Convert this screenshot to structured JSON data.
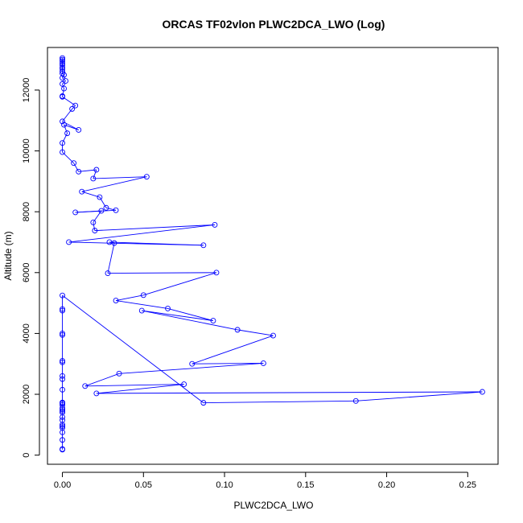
{
  "chart_data": {
    "type": "line",
    "title": "ORCAS TF02vlon PLWC2DCA_LWO (Log)",
    "xlabel": "PLWC2DCA_LWO",
    "ylabel": "Altitude (m)",
    "xlim": [
      -0.0092,
      0.2687
    ],
    "ylim": [
      -300,
      13400
    ],
    "xticks": [
      0.0,
      0.05,
      0.1,
      0.15,
      0.2,
      0.25
    ],
    "xtick_labels": [
      "0.00",
      "0.05",
      "0.10",
      "0.15",
      "0.20",
      "0.25"
    ],
    "yticks": [
      0,
      2000,
      4000,
      6000,
      8000,
      10000,
      12000
    ],
    "ytick_labels": [
      "0",
      "2000",
      "4000",
      "6000",
      "8000",
      "10000",
      "12000"
    ],
    "grid": false,
    "legend": "none",
    "colors": {
      "series": "#0000ff",
      "axes": "#000000"
    },
    "series": [
      {
        "x": [
          0.0,
          0.0,
          0.0,
          0.0,
          0.0,
          0.0,
          0.0,
          0.0,
          0.0,
          0.0,
          0.0,
          0.0,
          0.0,
          0.0,
          0.0,
          0.0,
          0.0,
          0.0,
          0.0,
          0.0,
          0.0,
          0.0,
          0.0,
          0.0,
          0.0,
          0.0,
          0.087,
          0.181,
          0.259,
          0.021,
          0.075,
          0.014,
          0.035,
          0.124,
          0.08,
          0.13,
          0.108,
          0.049,
          0.093,
          0.065,
          0.033,
          0.05,
          0.095,
          0.028,
          0.032,
          0.029,
          0.087,
          0.004,
          0.094,
          0.02,
          0.019,
          0.024,
          0.008,
          0.033,
          0.027,
          0.023,
          0.012,
          0.052,
          0.019,
          0.021,
          0.01,
          0.007,
          0.0,
          0.0,
          0.003,
          0.001,
          0.01,
          0.0,
          0.006,
          0.008,
          0.0,
          0.0,
          0.001,
          0.0,
          0.002,
          0.0,
          0.001,
          0.0,
          0.0,
          0.0,
          0.0,
          0.0,
          0.0,
          0.0,
          0.0,
          0.0
        ],
        "y": [
          180,
          200,
          500,
          750,
          900,
          950,
          1000,
          1150,
          1250,
          1400,
          1450,
          1500,
          1550,
          1650,
          1700,
          1730,
          2150,
          2500,
          2600,
          3050,
          3100,
          3950,
          4000,
          4750,
          4800,
          5250,
          1720,
          1780,
          2080,
          2030,
          2330,
          2270,
          2680,
          3020,
          3000,
          3930,
          4120,
          4750,
          4420,
          4820,
          5080,
          5260,
          6000,
          5980,
          6970,
          7000,
          6900,
          7000,
          7570,
          7380,
          7650,
          8030,
          7980,
          8050,
          8130,
          8480,
          8660,
          9150,
          9090,
          9380,
          9320,
          9600,
          9960,
          10260,
          10580,
          10860,
          10690,
          10970,
          11380,
          11490,
          11780,
          11800,
          12050,
          12200,
          12300,
          12400,
          12500,
          12550,
          12620,
          12700,
          12750,
          12820,
          12880,
          12950,
          13000,
          13050
        ]
      }
    ]
  }
}
